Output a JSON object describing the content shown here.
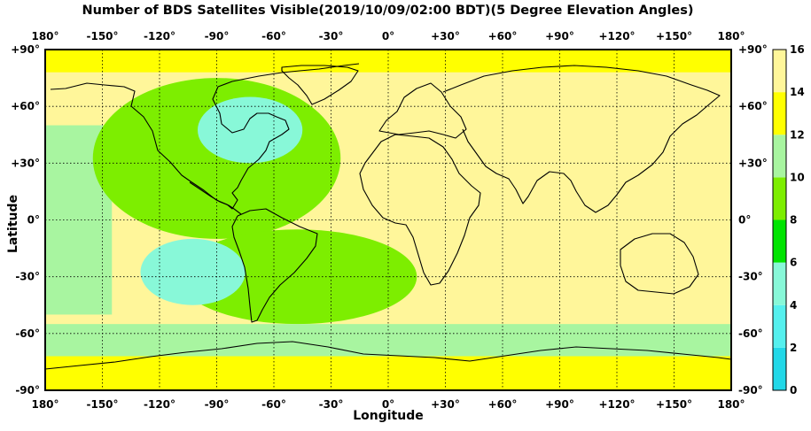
{
  "title": "Number of BDS Satellites Visible(2019/10/09/02:00 BDT)(5 Degree Elevation Angles)",
  "x_axis": {
    "label": "Longitude",
    "ticks": [
      {
        "value": -180,
        "label": "180°"
      },
      {
        "value": -150,
        "label": "-150°"
      },
      {
        "value": -120,
        "label": "-120°"
      },
      {
        "value": -90,
        "label": "-90°"
      },
      {
        "value": -60,
        "label": "-60°"
      },
      {
        "value": -30,
        "label": "-30°"
      },
      {
        "value": 0,
        "label": "0°"
      },
      {
        "value": 30,
        "label": "+30°"
      },
      {
        "value": 60,
        "label": "+60°"
      },
      {
        "value": 90,
        "label": "+90°"
      },
      {
        "value": 120,
        "label": "+120°"
      },
      {
        "value": 150,
        "label": "+150°"
      },
      {
        "value": 180,
        "label": "180°"
      }
    ]
  },
  "y_axis": {
    "label": "Latitude",
    "ticks": [
      {
        "value": 90,
        "label": "+90°"
      },
      {
        "value": 60,
        "label": "+60°"
      },
      {
        "value": 30,
        "label": "+30°"
      },
      {
        "value": 0,
        "label": "0°"
      },
      {
        "value": -30,
        "label": "-30°"
      },
      {
        "value": -60,
        "label": "-60°"
      },
      {
        "value": -90,
        "label": "-90°"
      }
    ]
  },
  "colorbar": {
    "labels": [
      "0",
      "2",
      "4",
      "6",
      "8",
      "10",
      "12",
      "14",
      "16"
    ],
    "bins": [
      {
        "from": 0,
        "to": 2,
        "color": "#22d8e8"
      },
      {
        "from": 2,
        "to": 4,
        "color": "#55f0ee"
      },
      {
        "from": 4,
        "to": 6,
        "color": "#88f8d8"
      },
      {
        "from": 6,
        "to": 8,
        "color": "#00e400"
      },
      {
        "from": 8,
        "to": 10,
        "color": "#7dee00"
      },
      {
        "from": 10,
        "to": 12,
        "color": "#a8f5a0"
      },
      {
        "from": 12,
        "to": 14,
        "color": "#ffff00"
      },
      {
        "from": 14,
        "to": 16,
        "color": "#fff69a"
      }
    ]
  },
  "chart_data": {
    "type": "heatmap",
    "x": {
      "min": -180,
      "max": 180
    },
    "y": {
      "min": -90,
      "max": 90
    },
    "value_range": [
      0,
      16
    ],
    "grid": "dotted",
    "regions": [
      {
        "name": "Eastern hemisphere (Asia, Indian Ocean, Australia)",
        "lon": [
          25,
          180
        ],
        "lat": [
          -55,
          78
        ],
        "value": 15
      },
      {
        "name": "Central Pacific",
        "lon": [
          -180,
          -145
        ],
        "lat": [
          -50,
          50
        ],
        "value": 11
      },
      {
        "name": "North America / North Pacific",
        "lon": [
          -155,
          -25
        ],
        "lat": [
          -10,
          75
        ],
        "value": 9
      },
      {
        "name": "Eastern North America / Canada",
        "lon": [
          -100,
          -45
        ],
        "lat": [
          30,
          65
        ],
        "value": 5
      },
      {
        "name": "South Pacific",
        "lon": [
          -130,
          -75
        ],
        "lat": [
          -45,
          -10
        ],
        "value": 5
      },
      {
        "name": "South America / South Atlantic",
        "lon": [
          -110,
          15
        ],
        "lat": [
          -55,
          -5
        ],
        "value": 9
      },
      {
        "name": "Southern Ocean",
        "lon": [
          -180,
          180
        ],
        "lat": [
          -72,
          -55
        ],
        "value": 11
      },
      {
        "name": "Antarctica",
        "lon": [
          -180,
          180
        ],
        "lat": [
          -90,
          -72
        ],
        "value": 13
      },
      {
        "name": "Arctic",
        "lon": [
          -180,
          180
        ],
        "lat": [
          78,
          90
        ],
        "value": 13
      }
    ]
  }
}
